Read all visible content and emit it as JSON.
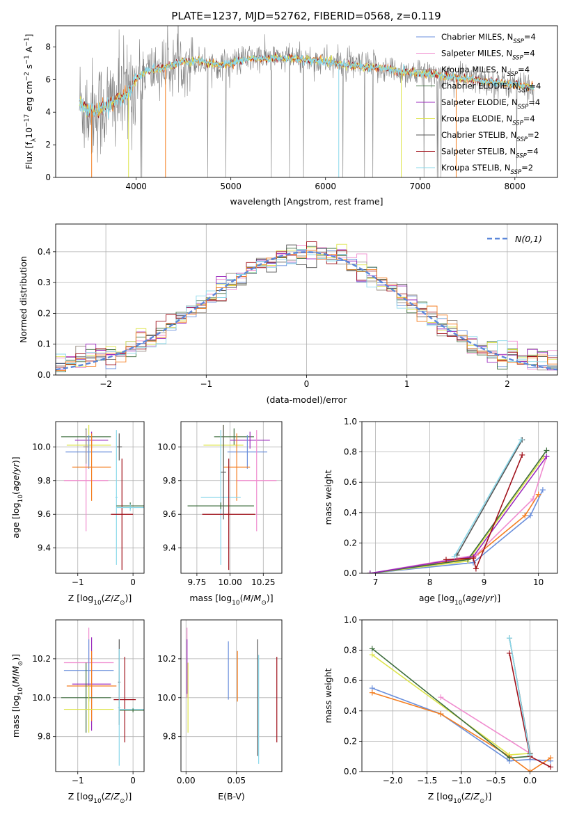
{
  "suptitle": "PLATE=1237, MJD=52762, FIBERID=0568, z=0.119",
  "series_colors": {
    "Chabrier MILES": "#6a8fdc",
    "Salpeter MILES": "#f08ccf",
    "Kroupa MILES": "#9a8f86",
    "Chabrier ELODIE": "#3d6d3d",
    "Salpeter ELODIE": "#9b2bbd",
    "Kroupa ELODIE": "#dde44a",
    "Chabrier STELIB": "#555555",
    "Salpeter STELIB": "#a0101a",
    "Kroupa STELIB": "#8ad8ea",
    "orange": "#f47e20",
    "spectrum_gray": "#808080",
    "model_cyan": "#6fd6dc",
    "gaussian": "#5b87d9",
    "grid": "#b0b0b0"
  },
  "chart_data": [
    {
      "id": "spectrum",
      "type": "line",
      "xlabel": "wavelength [Angstrom, rest frame]",
      "ylabel": "Flux [f_λ10^-17 erg cm^-2 s^-1 A^-1]",
      "xlim": [
        3150,
        8450
      ],
      "ylim": [
        0,
        9.3
      ],
      "xticks": [
        4000,
        5000,
        6000,
        7000,
        8000
      ],
      "yticks": [
        0,
        2,
        4,
        6,
        8
      ],
      "grid": false,
      "legend_position": "top-right",
      "legend": [
        {
          "name": "Chabrier MILES, N_SSP=4",
          "base": "Chabrier MILES, N",
          "sub": "SSP",
          "tail": "=4",
          "key": "Chabrier MILES"
        },
        {
          "name": "Salpeter MILES, N_SSP=4",
          "base": "Salpeter MILES, N",
          "sub": "SSP",
          "tail": "=4",
          "key": "Salpeter MILES"
        },
        {
          "name": "Kroupa MILES, N_SSP=4",
          "base": "Kroupa MILES, N",
          "sub": "SSP",
          "tail": "=4",
          "key": "Kroupa MILES"
        },
        {
          "name": "Chabrier ELODIE, N_SSP=4",
          "base": "Chabrier ELODIE, N",
          "sub": "SSP",
          "tail": "=4",
          "key": "Chabrier ELODIE"
        },
        {
          "name": "Salpeter ELODIE, N_SSP=4",
          "base": "Salpeter ELODIE, N",
          "sub": "SSP",
          "tail": "=4",
          "key": "Salpeter ELODIE"
        },
        {
          "name": "Kroupa ELODIE, N_SSP=4",
          "base": "Kroupa ELODIE, N",
          "sub": "SSP",
          "tail": "=4",
          "key": "Kroupa ELODIE"
        },
        {
          "name": "Chabrier STELIB, N_SSP=2",
          "base": "Chabrier STELIB, N",
          "sub": "SSP",
          "tail": "=2",
          "key": "Chabrier STELIB"
        },
        {
          "name": "Salpeter STELIB, N_SSP=4",
          "base": "Salpeter STELIB, N",
          "sub": "SSP",
          "tail": "=4",
          "key": "Salpeter STELIB"
        },
        {
          "name": "Kroupa STELIB, N_SSP=2",
          "base": "Kroupa STELIB, N",
          "sub": "SSP",
          "tail": "=2",
          "key": "Kroupa STELIB"
        }
      ],
      "spectrum_range": [
        3400,
        8200
      ],
      "continuum": [
        [
          3400,
          4.6
        ],
        [
          3500,
          4.1
        ],
        [
          3600,
          4.1
        ],
        [
          3700,
          4.4
        ],
        [
          3800,
          4.8
        ],
        [
          3900,
          5.0
        ],
        [
          4000,
          6.0
        ],
        [
          4100,
          6.5
        ],
        [
          4300,
          6.7
        ],
        [
          4500,
          7.1
        ],
        [
          4700,
          7.1
        ],
        [
          4900,
          6.9
        ],
        [
          5000,
          7.0
        ],
        [
          5200,
          7.3
        ],
        [
          5400,
          7.3
        ],
        [
          5600,
          7.3
        ],
        [
          5800,
          7.2
        ],
        [
          6000,
          7.1
        ],
        [
          6200,
          6.9
        ],
        [
          6400,
          6.8
        ],
        [
          6600,
          6.7
        ],
        [
          6800,
          6.5
        ],
        [
          7000,
          6.4
        ],
        [
          7200,
          6.3
        ],
        [
          7400,
          6.1
        ],
        [
          7600,
          6.0
        ],
        [
          7800,
          5.8
        ],
        [
          8000,
          5.7
        ],
        [
          8200,
          5.5
        ]
      ]
    },
    {
      "id": "residuals",
      "type": "histogram",
      "xlabel": "(data-model)/error",
      "ylabel": "Normed distribution",
      "xlim": [
        -2.5,
        2.5
      ],
      "ylim": [
        0,
        0.49
      ],
      "xticks": [
        -2,
        -1,
        0,
        1,
        2
      ],
      "xticklabels": [
        "−2",
        "−1",
        "0",
        "1",
        "2"
      ],
      "yticks": [
        0,
        0.1,
        0.2,
        0.3,
        0.4
      ],
      "yticklabels": [
        "0.0",
        "0.1",
        "0.2",
        "0.3",
        "0.4"
      ],
      "grid": true,
      "bin_width": 0.1,
      "legend_position": "top-right",
      "legend_label": "N(0,1)"
    },
    {
      "id": "age-vs-Z",
      "type": "errorbar",
      "xlabel": "Z [log10(Z/Z⊙)]",
      "ylabel": "age [log10(age/yr)]",
      "xlim": [
        -1.4,
        0.2
      ],
      "ylim": [
        9.25,
        10.15
      ],
      "xticks": [
        -1,
        0
      ],
      "xticklabels": [
        "−1",
        "0"
      ],
      "yticks": [
        9.4,
        9.6,
        9.8,
        10.0
      ],
      "yticklabels": [
        "9.4",
        "9.6",
        "9.8",
        "10.0"
      ],
      "grid": true,
      "points": [
        {
          "key": "Chabrier ELODIE",
          "x": -0.85,
          "xerr": 0.45,
          "y": 10.06,
          "yerr": 0.05
        },
        {
          "key": "Salpeter ELODIE",
          "x": -0.75,
          "xerr": 0.3,
          "y": 10.04,
          "yerr": 0.05
        },
        {
          "key": "Kroupa ELODIE",
          "x": -0.8,
          "xerr": 0.4,
          "y": 10.01,
          "yerr": 0.12
        },
        {
          "key": "Chabrier MILES",
          "x": -0.8,
          "xerr": 0.42,
          "y": 9.97,
          "yerr": 0.1
        },
        {
          "key": "Salpeter MILES",
          "x": -0.85,
          "xerr": 0.4,
          "y": 9.8,
          "yerr": 0.3
        },
        {
          "key": "orange",
          "x": -0.75,
          "xerr": 0.35,
          "y": 9.88,
          "yerr": 0.2
        },
        {
          "key": "Kroupa MILES",
          "x": -0.85,
          "xerr": 0.05,
          "y": 10.0,
          "yerr": 0.1
        },
        {
          "key": "Chabrier STELIB",
          "x": -0.25,
          "xerr": 0.05,
          "y": 10.0,
          "yerr": 0.08
        },
        {
          "key": "Kroupa STELIB",
          "x": -0.3,
          "xerr": 0.02,
          "y": 9.7,
          "yerr": 0.4
        },
        {
          "key": "Chabrier ELODIE",
          "x": -0.05,
          "xerr": 0.25,
          "y": 9.65,
          "yerr": 0.02
        },
        {
          "key": "Salpeter STELIB",
          "x": -0.2,
          "xerr": 0.2,
          "y": 9.6,
          "yerr": 0.33
        },
        {
          "key": "Kroupa STELIB",
          "x": -0.05,
          "xerr": 0.25,
          "y": 9.64,
          "yerr": 0.02
        }
      ]
    },
    {
      "id": "age-vs-mass",
      "type": "errorbar",
      "xlabel": "mass [log10(M/M⊙)]",
      "xlim": [
        9.63,
        10.39
      ],
      "ylim": [
        9.25,
        10.15
      ],
      "xticks": [
        9.75,
        10.0,
        10.25
      ],
      "xticklabels": [
        "9.75",
        "10.00",
        "10.25"
      ],
      "yticks": [
        9.4,
        9.6,
        9.8,
        10.0
      ],
      "yticklabels": [
        "9.4",
        "9.6",
        "9.8",
        "10.0"
      ],
      "grid": true,
      "points": [
        {
          "key": "Chabrier ELODIE",
          "x": 10.03,
          "xerr": 0.15,
          "y": 10.06,
          "yerr": 0.05
        },
        {
          "key": "Salpeter ELODIE",
          "x": 10.15,
          "xerr": 0.15,
          "y": 10.04,
          "yerr": 0.05
        },
        {
          "key": "Kroupa ELODIE",
          "x": 9.95,
          "xerr": 0.15,
          "y": 10.01,
          "yerr": 0.12
        },
        {
          "key": "Chabrier MILES",
          "x": 10.13,
          "xerr": 0.15,
          "y": 9.97,
          "yerr": 0.1
        },
        {
          "key": "Salpeter MILES",
          "x": 10.2,
          "xerr": 0.15,
          "y": 9.8,
          "yerr": 0.3
        },
        {
          "key": "orange",
          "x": 10.05,
          "xerr": 0.1,
          "y": 9.88,
          "yerr": 0.2
        },
        {
          "key": "Kroupa STELIB",
          "x": 9.93,
          "xerr": 0.15,
          "y": 9.7,
          "yerr": 0.4
        },
        {
          "key": "Chabrier ELODIE",
          "x": 9.93,
          "xerr": 0.25,
          "y": 9.65,
          "yerr": 0.02
        },
        {
          "key": "Salpeter STELIB",
          "x": 9.99,
          "xerr": 0.2,
          "y": 9.6,
          "yerr": 0.33
        },
        {
          "key": "Chabrier STELIB",
          "x": 9.95,
          "xerr": 0.02,
          "y": 9.85,
          "yerr": 0.28
        }
      ]
    },
    {
      "id": "massweight-vs-age",
      "type": "line",
      "xlabel": "age [log10(age/yr)]",
      "ylabel": "mass weight",
      "xlim": [
        6.75,
        10.35
      ],
      "ylim": [
        0,
        1.0
      ],
      "xticks": [
        7,
        8,
        9,
        10
      ],
      "yticks": [
        0,
        0.2,
        0.4,
        0.6,
        0.8,
        1.0
      ],
      "yticklabels": [
        "0.0",
        "0.2",
        "0.4",
        "0.6",
        "0.8",
        "1.0"
      ],
      "grid": true,
      "series": [
        {
          "key": "Chabrier MILES",
          "x": [
            6.9,
            8.8,
            9.85,
            10.08
          ],
          "y": [
            0.0,
            0.07,
            0.38,
            0.55
          ]
        },
        {
          "key": "orange",
          "x": 6.9,
          "xv": [
            6.9,
            8.8,
            9.75,
            10.0
          ],
          "y": [
            0.0,
            0.1,
            0.38,
            0.52
          ]
        },
        {
          "key": "Salpeter MILES",
          "x": [
            6.9,
            8.85,
            9.9,
            10.15
          ],
          "y": [
            0.0,
            0.12,
            0.49,
            0.77
          ]
        },
        {
          "key": "Kroupa ELODIE",
          "x": [
            6.9,
            8.7,
            10.1
          ],
          "y": [
            0.0,
            0.08,
            0.77
          ]
        },
        {
          "key": "Chabrier ELODIE",
          "x": [
            6.9,
            8.7,
            10.15
          ],
          "y": [
            0.0,
            0.09,
            0.81
          ]
        },
        {
          "key": "Salpeter ELODIE",
          "x": [
            6.9,
            8.8,
            10.15
          ],
          "y": [
            0.0,
            0.11,
            0.77
          ]
        },
        {
          "key": "Salpeter STELIB",
          "x": [
            8.3,
            8.8,
            8.85,
            9.7
          ],
          "y": [
            0.09,
            0.1,
            0.03,
            0.78
          ]
        },
        {
          "key": "Chabrier STELIB",
          "x": [
            8.5,
            9.7
          ],
          "y": [
            0.12,
            0.88
          ]
        },
        {
          "key": "Kroupa STELIB",
          "x": [
            8.45,
            9.68
          ],
          "y": [
            0.11,
            0.88
          ]
        }
      ]
    },
    {
      "id": "mass-vs-Z",
      "type": "errorbar",
      "xlabel": "Z [log10(Z/Z⊙)]",
      "ylabel": "mass [log10(M/M⊙)]",
      "xlim": [
        -1.4,
        0.2
      ],
      "ylim": [
        9.62,
        10.4
      ],
      "xticks": [
        -1,
        0
      ],
      "xticklabels": [
        "−1",
        "0"
      ],
      "yticks": [
        9.8,
        10.0,
        10.2
      ],
      "yticklabels": [
        "9.8",
        "10.0",
        "10.2"
      ],
      "grid": true,
      "points": [
        {
          "key": "Salpeter MILES",
          "x": -0.8,
          "xerr": 0.45,
          "y": 10.18,
          "yerr": 0.18
        },
        {
          "key": "Chabrier MILES",
          "x": -0.8,
          "xerr": 0.45,
          "y": 10.14,
          "yerr": 0.16
        },
        {
          "key": "Salpeter ELODIE",
          "x": -0.75,
          "xerr": 0.35,
          "y": 10.07,
          "yerr": 0.24
        },
        {
          "key": "orange",
          "x": -0.75,
          "xerr": 0.45,
          "y": 10.06,
          "yerr": 0.18
        },
        {
          "key": "Chabrier ELODIE",
          "x": -0.85,
          "xerr": 0.45,
          "y": 10.0,
          "yerr": 0.18
        },
        {
          "key": "Kroupa ELODIE",
          "x": -0.8,
          "xerr": 0.45,
          "y": 9.94,
          "yerr": 0.12
        },
        {
          "key": "Chabrier STELIB",
          "x": -0.25,
          "xerr": 0.02,
          "y": 10.08,
          "yerr": 0.22
        },
        {
          "key": "Salpeter STELIB",
          "x": -0.15,
          "xerr": 0.2,
          "y": 9.99,
          "yerr": 0.22
        },
        {
          "key": "Kroupa STELIB",
          "x": 0.0,
          "xerr": 0.25,
          "y": 9.94,
          "yerr": 0.01
        },
        {
          "key": "Chabrier ELODIE",
          "x": 0.0,
          "xerr": 0.25,
          "y": 9.935,
          "yerr": 0.01
        },
        {
          "key": "Kroupa STELIB",
          "x": -0.25,
          "xerr": 0.02,
          "y": 9.95,
          "yerr": 0.3
        }
      ]
    },
    {
      "id": "mass-vs-EBV",
      "type": "errorbar",
      "xlabel": "E(B-V)",
      "xlim": [
        -0.005,
        0.095
      ],
      "ylim": [
        9.62,
        10.4
      ],
      "xticks": [
        0.0,
        0.05
      ],
      "xticklabels": [
        "0.00",
        "0.05"
      ],
      "yticks": [
        9.8,
        10.0,
        10.2
      ],
      "yticklabels": [
        "9.8",
        "10.0",
        "10.2"
      ],
      "grid": true,
      "points": [
        {
          "key": "Salpeter MILES",
          "x": 0.001,
          "xerr": 0.0,
          "y": 10.18,
          "yerr": 0.18
        },
        {
          "key": "Salpeter ELODIE",
          "x": 0.001,
          "xerr": 0.0,
          "y": 10.16,
          "yerr": 0.14
        },
        {
          "key": "Kroupa ELODIE",
          "x": 0.002,
          "xerr": 0.0,
          "y": 10.0,
          "yerr": 0.18
        },
        {
          "key": "Chabrier MILES",
          "x": 0.042,
          "xerr": 0.0,
          "y": 10.14,
          "yerr": 0.15
        },
        {
          "key": "orange",
          "x": 0.051,
          "xerr": 0.0,
          "y": 10.11,
          "yerr": 0.13
        },
        {
          "key": "Chabrier STELIB",
          "x": 0.071,
          "xerr": 0.0,
          "y": 10.0,
          "yerr": 0.3
        },
        {
          "key": "Kroupa STELIB",
          "x": 0.072,
          "xerr": 0.0,
          "y": 9.94,
          "yerr": 0.28
        },
        {
          "key": "Salpeter STELIB",
          "x": 0.09,
          "xerr": 0.0,
          "y": 9.99,
          "yerr": 0.22
        }
      ]
    },
    {
      "id": "massweight-vs-Z",
      "type": "line",
      "xlabel": "Z [log10(Z/Z⊙)]",
      "ylabel": "mass weight",
      "xlim": [
        -2.45,
        0.4
      ],
      "ylim": [
        0,
        1.0
      ],
      "xticks": [
        -2.0,
        -1.5,
        -1.0,
        -0.5,
        0.0
      ],
      "xticklabels": [
        "−2.0",
        "−1.5",
        "−1.0",
        "−0.5",
        "0.0"
      ],
      "yticks": [
        0,
        0.2,
        0.4,
        0.6,
        0.8,
        1.0
      ],
      "yticklabels": [
        "0.0",
        "0.2",
        "0.4",
        "0.6",
        "0.8",
        "1.0"
      ],
      "grid": true,
      "series": [
        {
          "key": "Chabrier MILES",
          "x": [
            -2.3,
            -1.3,
            -0.3,
            0.0,
            0.3
          ],
          "y": [
            0.55,
            0.38,
            0.07,
            0.08,
            0.07
          ]
        },
        {
          "key": "orange",
          "x": [
            -2.3,
            -1.3,
            -0.3,
            0.0,
            0.3
          ],
          "y": [
            0.52,
            0.38,
            0.1,
            0.0,
            0.09
          ]
        },
        {
          "key": "Salpeter MILES",
          "x": [
            -1.3,
            0.0
          ],
          "y": [
            0.49,
            0.12
          ]
        },
        {
          "key": "Kroupa ELODIE",
          "x": [
            -2.3,
            -0.3,
            0.0
          ],
          "y": [
            0.77,
            0.11,
            0.12
          ]
        },
        {
          "key": "Chabrier ELODIE",
          "x": [
            -2.3,
            -0.3,
            0.0
          ],
          "y": [
            0.81,
            0.09,
            0.1
          ]
        },
        {
          "key": "Salpeter STELIB",
          "x": [
            -0.3,
            0.0,
            0.3
          ],
          "y": [
            0.78,
            0.1,
            0.03
          ]
        },
        {
          "key": "Chabrier STELIB",
          "x": [
            -0.3,
            0.0
          ],
          "y": [
            0.88,
            0.12
          ]
        },
        {
          "key": "Kroupa STELIB",
          "x": [
            -0.3,
            0.0
          ],
          "y": [
            0.88,
            0.11
          ]
        }
      ]
    }
  ]
}
